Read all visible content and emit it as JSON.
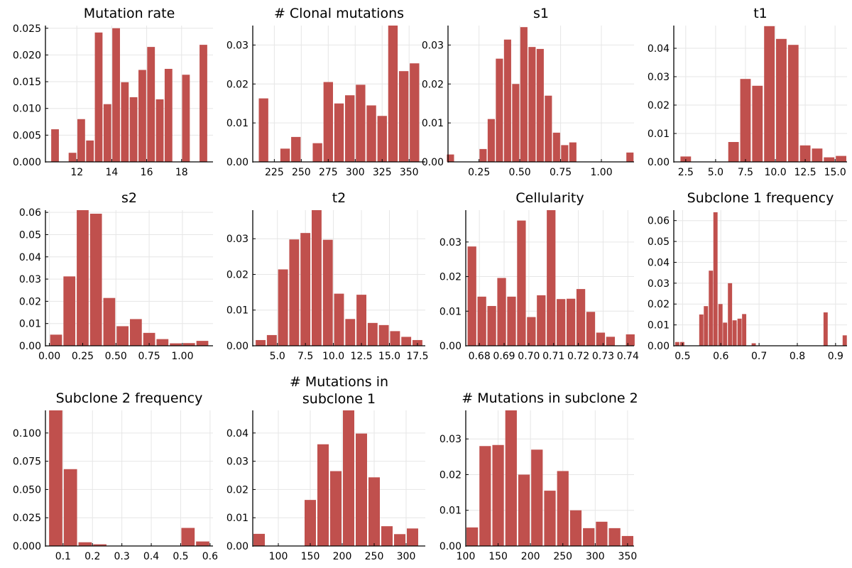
{
  "style": {
    "bar_color": "#c0504d",
    "grid_color": "#e6e6e6",
    "axis_color": "#000000"
  },
  "chart_data": [
    {
      "type": "bar",
      "title": "Mutation rate",
      "xlim": [
        10.2,
        19.8
      ],
      "ylim": [
        0,
        0.0255
      ],
      "xticks": [
        12,
        14,
        16,
        18
      ],
      "yticks": [
        0.0,
        0.005,
        0.01,
        0.015,
        0.02,
        0.025
      ],
      "xtick_labels": [
        "12",
        "14",
        "16",
        "18"
      ],
      "ytick_labels": [
        "0.000",
        "0.005",
        "0.010",
        "0.015",
        "0.020",
        "0.025"
      ],
      "bin_width": 0.5,
      "x": [
        10.75,
        11.75,
        12.25,
        12.75,
        13.25,
        13.75,
        14.25,
        14.75,
        15.25,
        15.75,
        16.25,
        16.75,
        17.25,
        18.25,
        19.25
      ],
      "values": [
        0.0061,
        0.0017,
        0.008,
        0.004,
        0.0242,
        0.0108,
        0.025,
        0.0149,
        0.0121,
        0.0172,
        0.0215,
        0.0117,
        0.0174,
        0.0163,
        0.0219
      ]
    },
    {
      "type": "bar",
      "title": "# Clonal mutations",
      "xlim": [
        205,
        365
      ],
      "ylim": [
        0,
        0.035
      ],
      "xticks": [
        225,
        250,
        275,
        300,
        325,
        350
      ],
      "yticks": [
        0.0,
        0.01,
        0.02,
        0.03
      ],
      "xtick_labels": [
        "225",
        "250",
        "275",
        "300",
        "325",
        "350"
      ],
      "ytick_labels": [
        "0.00",
        "0.01",
        "0.02",
        "0.03"
      ],
      "bin_width": 10,
      "x": [
        215,
        235,
        245,
        265,
        275,
        285,
        295,
        305,
        315,
        325,
        335,
        345,
        355
      ],
      "values": [
        0.0163,
        0.0034,
        0.0064,
        0.0048,
        0.0205,
        0.015,
        0.0171,
        0.0198,
        0.0145,
        0.0118,
        0.035,
        0.0233,
        0.0253
      ]
    },
    {
      "type": "bar",
      "title": "s1",
      "xlim": [
        0.06,
        1.2
      ],
      "ylim": [
        0,
        0.035
      ],
      "xticks": [
        0.25,
        0.5,
        0.75,
        1.0
      ],
      "yticks": [
        0.0,
        0.01,
        0.02,
        0.03
      ],
      "xtick_labels": [
        "0.25",
        "0.50",
        "0.75",
        "1.00"
      ],
      "ytick_labels": [
        "0.00",
        "0.01",
        "0.02",
        "0.03"
      ],
      "bin_width": 0.05,
      "x": [
        0.075,
        0.275,
        0.325,
        0.375,
        0.425,
        0.475,
        0.525,
        0.575,
        0.625,
        0.675,
        0.725,
        0.775,
        0.825,
        1.175
      ],
      "values": [
        0.0019,
        0.0033,
        0.011,
        0.0265,
        0.0314,
        0.02,
        0.0346,
        0.0295,
        0.029,
        0.017,
        0.0075,
        0.0043,
        0.005,
        0.0024
      ]
    },
    {
      "type": "bar",
      "title": "t1",
      "xlim": [
        1.5,
        16.0
      ],
      "ylim": [
        0,
        0.048
      ],
      "xticks": [
        2.5,
        5.0,
        7.5,
        10.0,
        12.5,
        15.0
      ],
      "yticks": [
        0.0,
        0.01,
        0.02,
        0.03,
        0.04
      ],
      "xtick_labels": [
        "2.5",
        "5.0",
        "7.5",
        "10.0",
        "12.5",
        "15.0"
      ],
      "ytick_labels": [
        "0.00",
        "0.01",
        "0.02",
        "0.03",
        "0.04"
      ],
      "bin_width": 1,
      "x": [
        2.5,
        6.5,
        7.5,
        8.5,
        9.5,
        10.5,
        11.5,
        12.5,
        13.5,
        14.5,
        15.5
      ],
      "values": [
        0.0019,
        0.007,
        0.0292,
        0.0268,
        0.0478,
        0.0433,
        0.0412,
        0.0058,
        0.0047,
        0.0016,
        0.0021
      ]
    },
    {
      "type": "bar",
      "title": "s2",
      "xlim": [
        -0.03,
        1.23
      ],
      "ylim": [
        0,
        0.061
      ],
      "xticks": [
        0.0,
        0.25,
        0.5,
        0.75,
        1.0
      ],
      "yticks": [
        0.0,
        0.01,
        0.02,
        0.03,
        0.04,
        0.05,
        0.06
      ],
      "xtick_labels": [
        "0.00",
        "0.25",
        "0.50",
        "0.75",
        "1.00"
      ],
      "ytick_labels": [
        "0.00",
        "0.01",
        "0.02",
        "0.03",
        "0.04",
        "0.05",
        "0.06"
      ],
      "bin_width": 0.1,
      "x": [
        0.05,
        0.15,
        0.25,
        0.35,
        0.45,
        0.55,
        0.65,
        0.75,
        0.85,
        0.95,
        1.05,
        1.15
      ],
      "values": [
        0.005,
        0.0312,
        0.061,
        0.0594,
        0.0215,
        0.0088,
        0.012,
        0.0058,
        0.003,
        0.0011,
        0.0012,
        0.0022
      ]
    },
    {
      "type": "bar",
      "title": "t2",
      "xlim": [
        2.8,
        18.2
      ],
      "ylim": [
        0,
        0.038
      ],
      "xticks": [
        5.0,
        7.5,
        10.0,
        12.5,
        15.0,
        17.5
      ],
      "yticks": [
        0.0,
        0.01,
        0.02,
        0.03
      ],
      "xtick_labels": [
        "5.0",
        "7.5",
        "10.0",
        "12.5",
        "15.0",
        "17.5"
      ],
      "ytick_labels": [
        "0.00",
        "0.01",
        "0.02",
        "0.03"
      ],
      "bin_width": 1,
      "x": [
        3.5,
        4.5,
        5.5,
        6.5,
        7.5,
        8.5,
        9.5,
        10.5,
        11.5,
        12.5,
        13.5,
        14.5,
        15.5,
        16.5,
        17.5
      ],
      "values": [
        0.0016,
        0.003,
        0.0214,
        0.0298,
        0.0316,
        0.038,
        0.0297,
        0.0146,
        0.0075,
        0.0143,
        0.0064,
        0.0058,
        0.0041,
        0.0025,
        0.0016
      ]
    },
    {
      "type": "bar",
      "title": "Cellularity",
      "xlim": [
        0.6745,
        0.7425
      ],
      "ylim": [
        0,
        0.0392
      ],
      "xticks": [
        0.68,
        0.69,
        0.7,
        0.71,
        0.72,
        0.73,
        0.74
      ],
      "yticks": [
        0.0,
        0.01,
        0.02,
        0.03
      ],
      "xtick_labels": [
        "0.68",
        "0.69",
        "0.70",
        "0.71",
        "0.72",
        "0.73",
        "0.74"
      ],
      "ytick_labels": [
        "0.00",
        "0.01",
        "0.02",
        "0.03"
      ],
      "bin_width": 0.004,
      "x": [
        0.677,
        0.681,
        0.685,
        0.689,
        0.693,
        0.697,
        0.701,
        0.705,
        0.709,
        0.713,
        0.717,
        0.721,
        0.725,
        0.729,
        0.733,
        0.741
      ],
      "values": [
        0.0287,
        0.0142,
        0.0115,
        0.0196,
        0.0142,
        0.0362,
        0.0083,
        0.0146,
        0.0392,
        0.0135,
        0.0136,
        0.0164,
        0.0098,
        0.0038,
        0.0026,
        0.0033
      ]
    },
    {
      "type": "bar",
      "title": "Subclone 1 frequency",
      "xlim": [
        0.477,
        0.93
      ],
      "ylim": [
        0,
        0.065
      ],
      "xticks": [
        0.5,
        0.6,
        0.7,
        0.8,
        0.9
      ],
      "yticks": [
        0.0,
        0.01,
        0.02,
        0.03,
        0.04,
        0.05,
        0.06
      ],
      "xtick_labels": [
        "0.5",
        "0.6",
        "0.7",
        "0.8",
        "0.9"
      ],
      "ytick_labels": [
        "0.00",
        "0.01",
        "0.02",
        "0.03",
        "0.04",
        "0.05",
        "0.06"
      ],
      "bin_width": 0.0125,
      "x": [
        0.486,
        0.499,
        0.549,
        0.561,
        0.574,
        0.586,
        0.599,
        0.611,
        0.624,
        0.636,
        0.649,
        0.661,
        0.686,
        0.874,
        0.924
      ],
      "values": [
        0.0018,
        0.0018,
        0.015,
        0.019,
        0.036,
        0.064,
        0.02,
        0.0111,
        0.03,
        0.0122,
        0.013,
        0.0152,
        0.0012,
        0.016,
        0.005
      ]
    },
    {
      "type": "bar",
      "title": "Subclone 2 frequency",
      "xlim": [
        0.04,
        0.61
      ],
      "ylim": [
        0,
        0.12
      ],
      "xticks": [
        0.1,
        0.2,
        0.3,
        0.4,
        0.5,
        0.6
      ],
      "yticks": [
        0.0,
        0.025,
        0.05,
        0.075,
        0.1
      ],
      "xtick_labels": [
        "0.1",
        "0.2",
        "0.3",
        "0.4",
        "0.5",
        "0.6"
      ],
      "ytick_labels": [
        "0.000",
        "0.025",
        "0.050",
        "0.075",
        "0.100"
      ],
      "bin_width": 0.05,
      "x": [
        0.075,
        0.125,
        0.175,
        0.225,
        0.525,
        0.575
      ],
      "values": [
        0.12,
        0.068,
        0.0033,
        0.0015,
        0.016,
        0.004
      ]
    },
    {
      "type": "bar",
      "title": "# Mutations in subclone 1",
      "title_lines": [
        "# Mutations in",
        "subclone 1"
      ],
      "xlim": [
        60,
        330
      ],
      "ylim": [
        0,
        0.048
      ],
      "xticks": [
        100,
        150,
        200,
        250,
        300
      ],
      "yticks": [
        0.0,
        0.01,
        0.02,
        0.03,
        0.04
      ],
      "xtick_labels": [
        "100",
        "150",
        "200",
        "250",
        "300"
      ],
      "ytick_labels": [
        "0.00",
        "0.01",
        "0.02",
        "0.03",
        "0.04"
      ],
      "bin_width": 20,
      "x": [
        70,
        150,
        170,
        190,
        210,
        230,
        250,
        270,
        290,
        310
      ],
      "values": [
        0.0043,
        0.0163,
        0.036,
        0.0265,
        0.048,
        0.0398,
        0.0243,
        0.007,
        0.0042,
        0.0062
      ]
    },
    {
      "type": "bar",
      "title": "# Mutations in subclone 2",
      "xlim": [
        100,
        360
      ],
      "ylim": [
        0,
        0.038
      ],
      "xticks": [
        100,
        150,
        200,
        250,
        300,
        350
      ],
      "yticks": [
        0.0,
        0.01,
        0.02,
        0.03
      ],
      "xtick_labels": [
        "100",
        "150",
        "200",
        "250",
        "300",
        "350"
      ],
      "ytick_labels": [
        "0.00",
        "0.01",
        "0.02",
        "0.03"
      ],
      "bin_width": 20,
      "x": [
        110,
        130,
        150,
        170,
        190,
        210,
        230,
        250,
        270,
        290,
        310,
        330,
        350
      ],
      "values": [
        0.0052,
        0.028,
        0.0283,
        0.038,
        0.02,
        0.027,
        0.0155,
        0.021,
        0.01,
        0.005,
        0.0068,
        0.005,
        0.0028
      ]
    }
  ]
}
